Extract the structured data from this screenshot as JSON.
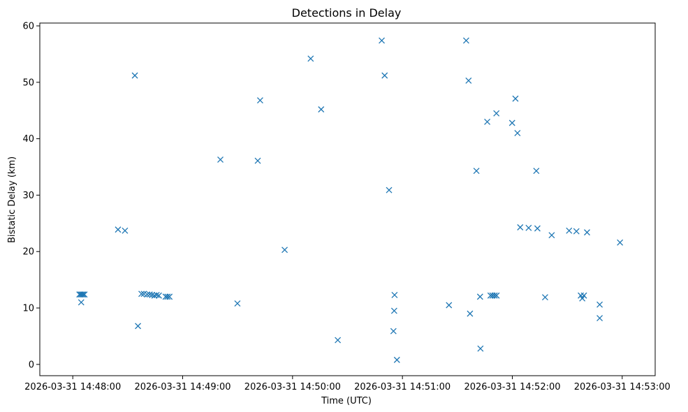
{
  "chart_data": {
    "type": "scatter",
    "title": "Detections in Delay",
    "xlabel": "Time (UTC)",
    "ylabel": "Bistatic Delay (km)",
    "x_unit": "seconds after 2026-03-31 14:48:00",
    "xlim": [
      -18,
      318
    ],
    "ylim": [
      -2,
      60.5
    ],
    "marker": "x",
    "marker_color": "#1f77b4",
    "x_ticks": [
      {
        "value": 0,
        "label": "2026-03-31 14:48:00"
      },
      {
        "value": 60,
        "label": "2026-03-31 14:49:00"
      },
      {
        "value": 120,
        "label": "2026-03-31 14:50:00"
      },
      {
        "value": 180,
        "label": "2026-03-31 14:51:00"
      },
      {
        "value": 240,
        "label": "2026-03-31 14:52:00"
      },
      {
        "value": 300,
        "label": "2026-03-31 14:53:00"
      }
    ],
    "y_ticks": [
      {
        "value": 0,
        "label": "0"
      },
      {
        "value": 10,
        "label": "10"
      },
      {
        "value": 20,
        "label": "20"
      },
      {
        "value": 30,
        "label": "30"
      },
      {
        "value": 40,
        "label": "40"
      },
      {
        "value": 50,
        "label": "50"
      },
      {
        "value": 60,
        "label": "60"
      }
    ],
    "series": [
      {
        "name": "detections",
        "points": [
          [
            3.6,
            12.4
          ],
          [
            4.3,
            12.4
          ],
          [
            5.0,
            12.4
          ],
          [
            5.7,
            12.4
          ],
          [
            6.4,
            12.4
          ],
          [
            4.6,
            11.0
          ],
          [
            24.7,
            23.9
          ],
          [
            28.5,
            23.7
          ],
          [
            33.9,
            51.2
          ],
          [
            35.6,
            6.8
          ],
          [
            37.5,
            12.5
          ],
          [
            38.8,
            12.5
          ],
          [
            40.6,
            12.4
          ],
          [
            42.0,
            12.4
          ],
          [
            43.3,
            12.3
          ],
          [
            44.6,
            12.2
          ],
          [
            45.8,
            12.3
          ],
          [
            47.0,
            12.2
          ],
          [
            50.7,
            12.0
          ],
          [
            51.7,
            12.0
          ],
          [
            52.8,
            12.0
          ],
          [
            80.6,
            36.3
          ],
          [
            89.9,
            10.8
          ],
          [
            101.0,
            36.1
          ],
          [
            102.3,
            46.8
          ],
          [
            115.7,
            20.3
          ],
          [
            129.9,
            54.2
          ],
          [
            135.6,
            45.2
          ],
          [
            144.7,
            4.3
          ],
          [
            168.7,
            57.4
          ],
          [
            170.3,
            51.2
          ],
          [
            172.7,
            30.9
          ],
          [
            175.7,
            12.3
          ],
          [
            175.5,
            9.5
          ],
          [
            175.1,
            5.9
          ],
          [
            177.0,
            0.8
          ],
          [
            205.4,
            10.5
          ],
          [
            214.8,
            57.4
          ],
          [
            216.1,
            50.3
          ],
          [
            216.9,
            9.0
          ],
          [
            220.4,
            34.3
          ],
          [
            222.4,
            12.0
          ],
          [
            222.6,
            2.8
          ],
          [
            226.3,
            43.0
          ],
          [
            228.1,
            12.2
          ],
          [
            229.2,
            12.2
          ],
          [
            230.3,
            12.2
          ],
          [
            231.4,
            12.2
          ],
          [
            231.3,
            44.5
          ],
          [
            239.9,
            42.8
          ],
          [
            241.7,
            47.1
          ],
          [
            242.8,
            41.0
          ],
          [
            244.3,
            24.3
          ],
          [
            248.9,
            24.2
          ],
          [
            253.1,
            34.3
          ],
          [
            253.7,
            24.1
          ],
          [
            257.9,
            11.9
          ],
          [
            261.5,
            22.9
          ],
          [
            271.0,
            23.7
          ],
          [
            275.0,
            23.6
          ],
          [
            277.4,
            12.2
          ],
          [
            278.2,
            11.7
          ],
          [
            279.1,
            12.2
          ],
          [
            280.8,
            23.4
          ],
          [
            287.7,
            10.6
          ],
          [
            287.7,
            8.2
          ],
          [
            298.8,
            21.6
          ]
        ]
      }
    ]
  }
}
